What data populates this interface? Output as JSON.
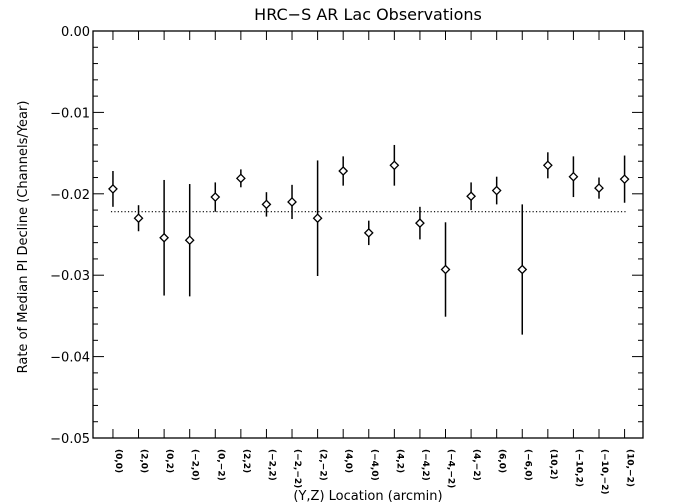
{
  "chart_data": {
    "type": "scatter",
    "title": "HRC−S AR Lac Observations",
    "xlabel": "(Y,Z) Location (arcmin)",
    "ylabel": "Rate of Median PI Decline (Channels/Year)",
    "ylim": [
      -0.05,
      0.0
    ],
    "yticks": [
      0.0,
      -0.01,
      -0.02,
      -0.03,
      -0.04,
      -0.05
    ],
    "ytick_labels": [
      "0.00",
      "−0.01",
      "−0.02",
      "−0.03",
      "−0.04",
      "−0.05"
    ],
    "grid": false,
    "marker": "diamond",
    "categories": [
      "(0,0)",
      "(2,0)",
      "(0,2)",
      "(−2,0)",
      "(0,−2)",
      "(2,2)",
      "(−2,2)",
      "(−2,−2)",
      "(2,−2)",
      "(4,0)",
      "(−4,0)",
      "(4,2)",
      "(−4,2)",
      "(−4,−2)",
      "(4,−2)",
      "(6,0)",
      "(−6,0)",
      "(10,2)",
      "(−10,2)",
      "(−10,−2)",
      "(10,−2)"
    ],
    "values": [
      -0.0194,
      -0.023,
      -0.0254,
      -0.0257,
      -0.0204,
      -0.0181,
      -0.0213,
      -0.021,
      -0.023,
      -0.0172,
      -0.0248,
      -0.0165,
      -0.0236,
      -0.0293,
      -0.0203,
      -0.0196,
      -0.0293,
      -0.0165,
      -0.0179,
      -0.0193,
      -0.0182
    ],
    "errors": [
      0.0022,
      0.0016,
      0.0071,
      0.0069,
      0.0018,
      0.0011,
      0.0015,
      0.0021,
      0.0071,
      0.0018,
      0.0015,
      0.0025,
      0.002,
      0.0058,
      0.0017,
      0.0017,
      0.008,
      0.0016,
      0.0025,
      0.0013,
      0.0029
    ],
    "reference_line": {
      "y": -0.0222,
      "style": "dotted"
    }
  }
}
